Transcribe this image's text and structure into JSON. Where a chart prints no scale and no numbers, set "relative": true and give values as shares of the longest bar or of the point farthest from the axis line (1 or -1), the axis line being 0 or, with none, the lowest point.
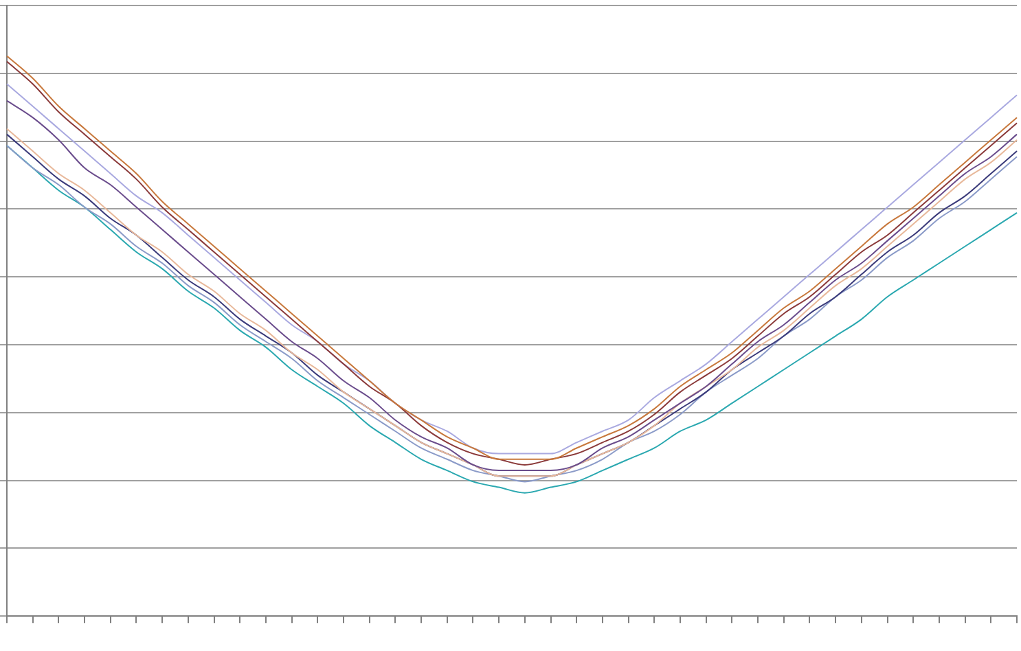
{
  "chart_data": {
    "type": "line",
    "relative": true,
    "grid": "y",
    "legend": false,
    "marker": "none",
    "line_style": "solid",
    "categories": [
      null,
      null,
      null,
      null,
      null,
      null,
      null,
      null,
      null,
      null,
      null,
      null,
      null,
      null,
      null,
      null,
      null,
      null,
      null,
      null,
      null,
      null,
      null,
      null,
      null,
      null,
      null,
      null,
      null,
      null,
      null,
      null,
      null,
      null,
      null,
      null,
      null,
      null,
      null,
      null
    ],
    "series": [
      {
        "color": "#c8783c",
        "values": [
          1.0,
          0.96,
          0.91,
          0.87,
          0.83,
          0.79,
          0.74,
          0.7,
          0.66,
          0.62,
          0.58,
          0.54,
          0.5,
          0.46,
          0.42,
          0.38,
          0.35,
          0.32,
          0.3,
          0.28,
          0.28,
          0.28,
          0.3,
          0.32,
          0.34,
          0.37,
          0.41,
          0.44,
          0.47,
          0.51,
          0.55,
          0.58,
          0.62,
          0.66,
          0.7,
          0.73,
          0.77,
          0.81,
          0.85,
          0.89
        ]
      },
      {
        "color": "#8b3a3a",
        "values": [
          0.99,
          0.95,
          0.9,
          0.86,
          0.82,
          0.78,
          0.73,
          0.69,
          0.65,
          0.61,
          0.57,
          0.53,
          0.49,
          0.45,
          0.41,
          0.38,
          0.34,
          0.31,
          0.29,
          0.28,
          0.27,
          0.28,
          0.29,
          0.31,
          0.33,
          0.36,
          0.4,
          0.43,
          0.46,
          0.5,
          0.54,
          0.57,
          0.61,
          0.65,
          0.68,
          0.72,
          0.76,
          0.8,
          0.84,
          0.88
        ]
      },
      {
        "color": "#a9a9e0",
        "values": [
          0.95,
          0.91,
          0.87,
          0.83,
          0.79,
          0.75,
          0.72,
          0.68,
          0.64,
          0.6,
          0.56,
          0.52,
          0.49,
          0.45,
          0.42,
          0.38,
          0.35,
          0.33,
          0.3,
          0.29,
          0.29,
          0.29,
          0.31,
          0.33,
          0.35,
          0.39,
          0.42,
          0.45,
          0.49,
          0.53,
          0.57,
          0.61,
          0.65,
          0.69,
          0.73,
          0.77,
          0.81,
          0.85,
          0.89,
          0.93
        ]
      },
      {
        "color": "#6a4c8c",
        "values": [
          0.92,
          0.89,
          0.85,
          0.8,
          0.77,
          0.73,
          0.69,
          0.65,
          0.61,
          0.57,
          0.53,
          0.49,
          0.46,
          0.42,
          0.39,
          0.35,
          0.32,
          0.3,
          0.27,
          0.26,
          0.26,
          0.26,
          0.27,
          0.3,
          0.32,
          0.35,
          0.38,
          0.41,
          0.45,
          0.49,
          0.52,
          0.56,
          0.6,
          0.63,
          0.67,
          0.71,
          0.75,
          0.79,
          0.82,
          0.86
        ]
      },
      {
        "color": "#e8b89a",
        "values": [
          0.87,
          0.83,
          0.79,
          0.76,
          0.72,
          0.68,
          0.65,
          0.61,
          0.58,
          0.54,
          0.51,
          0.47,
          0.44,
          0.4,
          0.37,
          0.34,
          0.31,
          0.29,
          0.27,
          0.25,
          0.25,
          0.25,
          0.27,
          0.29,
          0.31,
          0.34,
          0.38,
          0.41,
          0.44,
          0.48,
          0.51,
          0.55,
          0.59,
          0.62,
          0.66,
          0.7,
          0.74,
          0.78,
          0.81,
          0.85
        ]
      },
      {
        "color": "#3a3a7a",
        "values": [
          0.86,
          0.82,
          0.78,
          0.75,
          0.71,
          0.68,
          0.64,
          0.6,
          0.57,
          0.53,
          0.5,
          0.47,
          0.43,
          0.4,
          0.37,
          0.34,
          0.31,
          0.29,
          0.27,
          0.25,
          0.25,
          0.25,
          0.27,
          0.29,
          0.31,
          0.34,
          0.37,
          0.4,
          0.44,
          0.47,
          0.5,
          0.54,
          0.57,
          0.61,
          0.65,
          0.68,
          0.72,
          0.75,
          0.79,
          0.83
        ]
      },
      {
        "color": "#8a9ac8",
        "values": [
          0.84,
          0.8,
          0.77,
          0.73,
          0.7,
          0.66,
          0.63,
          0.59,
          0.56,
          0.52,
          0.49,
          0.46,
          0.42,
          0.39,
          0.36,
          0.33,
          0.3,
          0.28,
          0.26,
          0.25,
          0.24,
          0.25,
          0.26,
          0.28,
          0.31,
          0.33,
          0.36,
          0.4,
          0.43,
          0.46,
          0.5,
          0.53,
          0.57,
          0.6,
          0.64,
          0.67,
          0.71,
          0.74,
          0.78,
          0.82
        ]
      },
      {
        "color": "#2aa8b0",
        "values": [
          0.84,
          0.8,
          0.76,
          0.73,
          0.69,
          0.65,
          0.62,
          0.58,
          0.55,
          0.51,
          0.48,
          0.44,
          0.41,
          0.38,
          0.34,
          0.31,
          0.28,
          0.26,
          0.24,
          0.23,
          0.22,
          0.23,
          0.24,
          0.26,
          0.28,
          0.3,
          0.33,
          0.35,
          0.38,
          0.41,
          0.44,
          0.47,
          0.5,
          0.53,
          0.57,
          0.6,
          0.63,
          0.66,
          0.69,
          0.72
        ]
      }
    ]
  }
}
